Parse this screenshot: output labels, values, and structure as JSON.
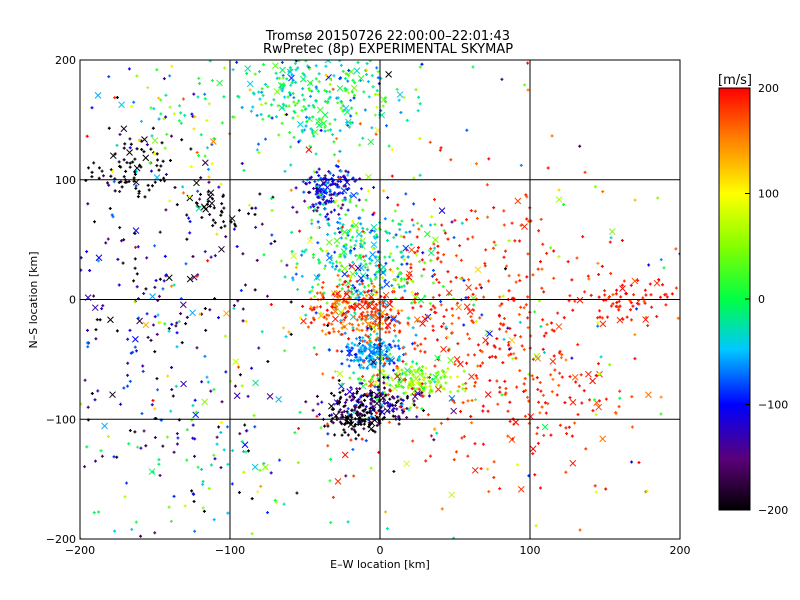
{
  "chart_data": {
    "type": "scatter",
    "title": "Tromsø 20150726 22:00:00–22:01:43",
    "subtitle": "RwPretec (8p) EXPERIMENTAL SKYMAP",
    "xlabel": "E–W location [km]",
    "ylabel": "N–S location [km]",
    "xlim": [
      -200,
      200
    ],
    "ylim": [
      -200,
      200
    ],
    "xticks": [
      -200,
      -100,
      0,
      100,
      200
    ],
    "yticks": [
      -200,
      -100,
      0,
      100,
      200
    ],
    "grid": true,
    "marker_styles": [
      "plus",
      "cross"
    ],
    "colorbar": {
      "label": "[m/s]",
      "range": [
        -200,
        200
      ],
      "ticks": [
        200,
        100,
        0,
        -100,
        -200
      ],
      "colormap": "black-purple-blue-cyan-green-yellow-red"
    },
    "clusters": [
      {
        "x": -45,
        "y": 175,
        "sx": 30,
        "sy": 22,
        "n": 320,
        "vel": -10,
        "vsd": 40
      },
      {
        "x": -35,
        "y": 90,
        "sx": 10,
        "sy": 10,
        "n": 160,
        "vel": -110,
        "vsd": 30
      },
      {
        "x": -10,
        "y": 30,
        "sx": 22,
        "sy": 28,
        "n": 360,
        "vel": -15,
        "vsd": 50
      },
      {
        "x": -15,
        "y": -8,
        "sx": 18,
        "sy": 12,
        "n": 220,
        "vel": 175,
        "vsd": 25
      },
      {
        "x": -5,
        "y": -45,
        "sx": 10,
        "sy": 7,
        "n": 160,
        "vel": -60,
        "vsd": 20
      },
      {
        "x": 20,
        "y": -68,
        "sx": 18,
        "sy": 8,
        "n": 170,
        "vel": 50,
        "vsd": 30
      },
      {
        "x": -5,
        "y": -88,
        "sx": 16,
        "sy": 9,
        "n": 200,
        "vel": -150,
        "vsd": 45
      },
      {
        "x": -18,
        "y": -100,
        "sx": 10,
        "sy": 6,
        "n": 90,
        "vel": -200,
        "vsd": 15
      },
      {
        "x": 55,
        "y": -20,
        "sx": 45,
        "sy": 60,
        "n": 380,
        "vel": 185,
        "vsd": 15
      },
      {
        "x": 165,
        "y": 0,
        "sx": 20,
        "sy": 10,
        "n": 70,
        "vel": 190,
        "vsd": 10
      },
      {
        "x": 110,
        "y": -80,
        "sx": 35,
        "sy": 30,
        "n": 80,
        "vel": 185,
        "vsd": 15
      },
      {
        "x": -145,
        "y": -20,
        "sx": 40,
        "sy": 95,
        "n": 280,
        "vel": -140,
        "vsd": 55
      },
      {
        "x": -170,
        "y": 110,
        "sx": 18,
        "sy": 15,
        "n": 80,
        "vel": -200,
        "vsd": 10
      },
      {
        "x": -110,
        "y": 75,
        "sx": 12,
        "sy": 10,
        "n": 40,
        "vel": -200,
        "vsd": 10
      },
      {
        "x": -130,
        "y": 150,
        "sx": 30,
        "sy": 30,
        "n": 70,
        "vel": 40,
        "vsd": 80
      },
      {
        "x": -120,
        "y": -140,
        "sx": 40,
        "sy": 35,
        "n": 70,
        "vel": -50,
        "vsd": 70
      },
      {
        "x": 0,
        "y": 0,
        "sx": 120,
        "sy": 110,
        "n": 330,
        "vel": 30,
        "vsd": 130
      }
    ]
  }
}
